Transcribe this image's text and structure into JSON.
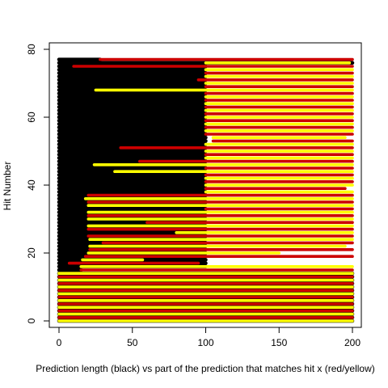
{
  "chart_data": {
    "type": "segment",
    "xlabel": "Prediction length (black) vs part of the prediction that matches hit x (red/yellow)",
    "ylabel": "Hit Number",
    "xlim": [
      0,
      200
    ],
    "xticks": [
      0,
      50,
      100,
      150,
      200
    ],
    "ylim": [
      0,
      80
    ],
    "yticks": [
      0,
      20,
      40,
      60,
      80
    ],
    "length_color": "#000000",
    "match_colors": [
      "#ffff00",
      "#cc0000"
    ],
    "hits": [
      0,
      1,
      2,
      3,
      4,
      5,
      6,
      7,
      8,
      9,
      10,
      11,
      12,
      13,
      14,
      15,
      16,
      17,
      18,
      19,
      20,
      21,
      22,
      23,
      24,
      25,
      26,
      27,
      28,
      29,
      30,
      31,
      32,
      33,
      34,
      35,
      36,
      37,
      38,
      39,
      40,
      41,
      42,
      43,
      44,
      45,
      46,
      47,
      48,
      49,
      50,
      51,
      52,
      53,
      54,
      55,
      56,
      57,
      58,
      59,
      60,
      61,
      62,
      63,
      64,
      65,
      66,
      67,
      68,
      69,
      70,
      71,
      72,
      73,
      74,
      75,
      76,
      77
    ],
    "lengths": [
      200,
      200,
      200,
      200,
      200,
      200,
      200,
      200,
      200,
      200,
      200,
      200,
      200,
      200,
      200,
      15,
      100,
      100,
      100,
      100,
      100,
      100,
      100,
      100,
      100,
      100,
      100,
      100,
      100,
      100,
      100,
      100,
      100,
      100,
      100,
      100,
      100,
      100,
      100,
      100,
      100,
      100,
      100,
      100,
      100,
      100,
      100,
      100,
      100,
      100,
      100,
      100,
      100,
      100,
      100,
      100,
      100,
      100,
      100,
      100,
      100,
      100,
      100,
      100,
      100,
      100,
      100,
      100,
      100,
      100,
      100,
      100,
      100,
      100,
      100,
      100,
      200,
      28
    ],
    "match_start": [
      0,
      0,
      0,
      0,
      0,
      0,
      0,
      0,
      0,
      0,
      0,
      0,
      0,
      0,
      0,
      15,
      15,
      7,
      16,
      18,
      20,
      21,
      21,
      30,
      21,
      20,
      80,
      20,
      20,
      60,
      20,
      20,
      20,
      100,
      20,
      20,
      18,
      20,
      100,
      100,
      100,
      100,
      100,
      100,
      38,
      100,
      24,
      55,
      100,
      100,
      100,
      42,
      100,
      105,
      105,
      100,
      100,
      100,
      100,
      100,
      100,
      100,
      100,
      100,
      100,
      100,
      100,
      100,
      25,
      100,
      100,
      95,
      100,
      100,
      100,
      10,
      100,
      28
    ],
    "match_end": [
      200,
      200,
      200,
      200,
      200,
      200,
      200,
      200,
      200,
      200,
      200,
      200,
      200,
      200,
      200,
      200,
      200,
      95,
      57,
      200,
      150,
      200,
      195,
      200,
      200,
      200,
      200,
      200,
      200,
      200,
      200,
      200,
      200,
      200,
      200,
      200,
      200,
      200,
      200,
      195,
      200,
      200,
      200,
      200,
      200,
      200,
      200,
      200,
      200,
      200,
      200,
      200,
      200,
      200,
      195,
      200,
      200,
      200,
      200,
      200,
      200,
      200,
      200,
      200,
      200,
      200,
      200,
      200,
      200,
      200,
      200,
      200,
      200,
      200,
      200,
      200,
      198,
      200
    ]
  }
}
